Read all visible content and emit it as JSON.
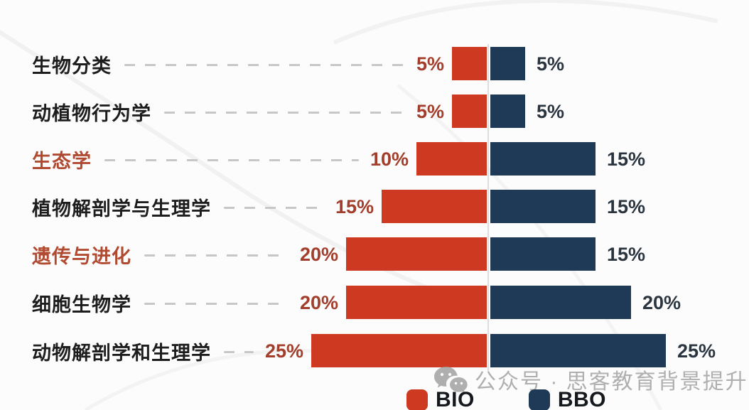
{
  "chart_data": {
    "type": "bar",
    "variant": "diverging-horizontal",
    "title": "",
    "categories": [
      "生物分类",
      "动植物行为学",
      "生态学",
      "植物解剖学与生理学",
      "遗传与进化",
      "细胞生物学",
      "动物解剖学和生理学"
    ],
    "series": [
      {
        "name": "BIO",
        "color": "#ce3a21",
        "values": [
          5,
          5,
          10,
          15,
          20,
          20,
          25
        ]
      },
      {
        "name": "BBO",
        "color": "#1f3a57",
        "values": [
          5,
          5,
          15,
          15,
          15,
          20,
          25
        ]
      }
    ],
    "highlighted_category_indexes": [
      2,
      4
    ],
    "value_suffix": "%",
    "xlim_each_side": [
      0,
      25
    ],
    "grid": false,
    "legend_position": "bottom-center"
  },
  "legend": {
    "items": [
      {
        "label": "BIO",
        "color": "#ce3a21"
      },
      {
        "label": "BBO",
        "color": "#1f3a57"
      }
    ]
  },
  "watermark": {
    "icon": "wechat-icon",
    "text": "公众号 · 思客教育背景提升"
  },
  "colors": {
    "bio_bar": "#ce3a21",
    "bbo_bar": "#1f3a57",
    "category_label": "#1d1d1d",
    "category_label_highlight": "#b04a31",
    "pct_left_label": "#a23e2b",
    "pct_right_label": "#2b3540",
    "leader_dash": "#c7c7c7",
    "axis_line": "#dedede",
    "background": "#fcfcfc",
    "watermark": "#9d9d9d"
  }
}
